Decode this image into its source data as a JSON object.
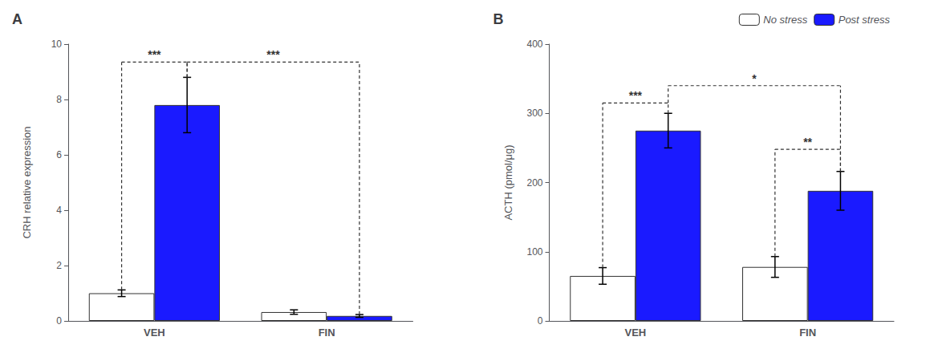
{
  "chart_data": [
    {
      "type": "bar",
      "title": "A",
      "categories": [
        "VEH",
        "FIN"
      ],
      "ylabel": "CRH relative expression",
      "ylim": [
        0,
        10
      ],
      "yticks": [
        0,
        2,
        4,
        6,
        8,
        10
      ],
      "grid": false,
      "series": [
        {
          "name": "No stress",
          "color": "#ffffff",
          "values": [
            1.0,
            0.32
          ],
          "errors": [
            0.12,
            0.08
          ]
        },
        {
          "name": "Post stress",
          "color": "#1a1aff",
          "values": [
            7.8,
            0.18
          ],
          "errors": [
            1.0,
            0.05
          ]
        }
      ],
      "annotations": [
        {
          "text": "***",
          "y": 9.35,
          "from": {
            "category": "VEH",
            "series": "No stress",
            "y": 1.12
          },
          "to": {
            "category": "VEH",
            "series": "Post stress",
            "y": 8.8
          }
        },
        {
          "text": "***",
          "y": 9.35,
          "from": {
            "category": "VEH",
            "series": "Post stress",
            "y": 8.8
          },
          "to": {
            "category": "FIN",
            "series": "Post stress",
            "y": 0.23
          }
        }
      ]
    },
    {
      "type": "bar",
      "title": "B",
      "categories": [
        "VEH",
        "FIN"
      ],
      "ylabel": "ACTH (pmol/μg)",
      "ylim": [
        0,
        400
      ],
      "yticks": [
        0,
        100,
        200,
        300,
        400
      ],
      "grid": false,
      "legend": "upper right",
      "series": [
        {
          "name": "No stress",
          "color": "#ffffff",
          "values": [
            65,
            78
          ],
          "errors": [
            12,
            15
          ]
        },
        {
          "name": "Post stress",
          "color": "#1a1aff",
          "values": [
            275,
            188
          ],
          "errors": [
            25,
            28
          ]
        }
      ],
      "annotations": [
        {
          "text": "***",
          "y": 315,
          "from": {
            "category": "VEH",
            "series": "No stress",
            "y": 77
          },
          "to": {
            "category": "VEH",
            "series": "Post stress",
            "y": 300
          }
        },
        {
          "text": "*",
          "y": 340,
          "from": {
            "category": "VEH",
            "series": "Post stress",
            "y": 315
          },
          "to": {
            "category": "FIN",
            "series": "Post stress",
            "y": 216
          }
        },
        {
          "text": "**",
          "y": 248,
          "from": {
            "category": "FIN",
            "series": "No stress",
            "y": 93
          },
          "to": {
            "category": "FIN",
            "series": "Post stress",
            "y": 216
          }
        }
      ]
    }
  ]
}
